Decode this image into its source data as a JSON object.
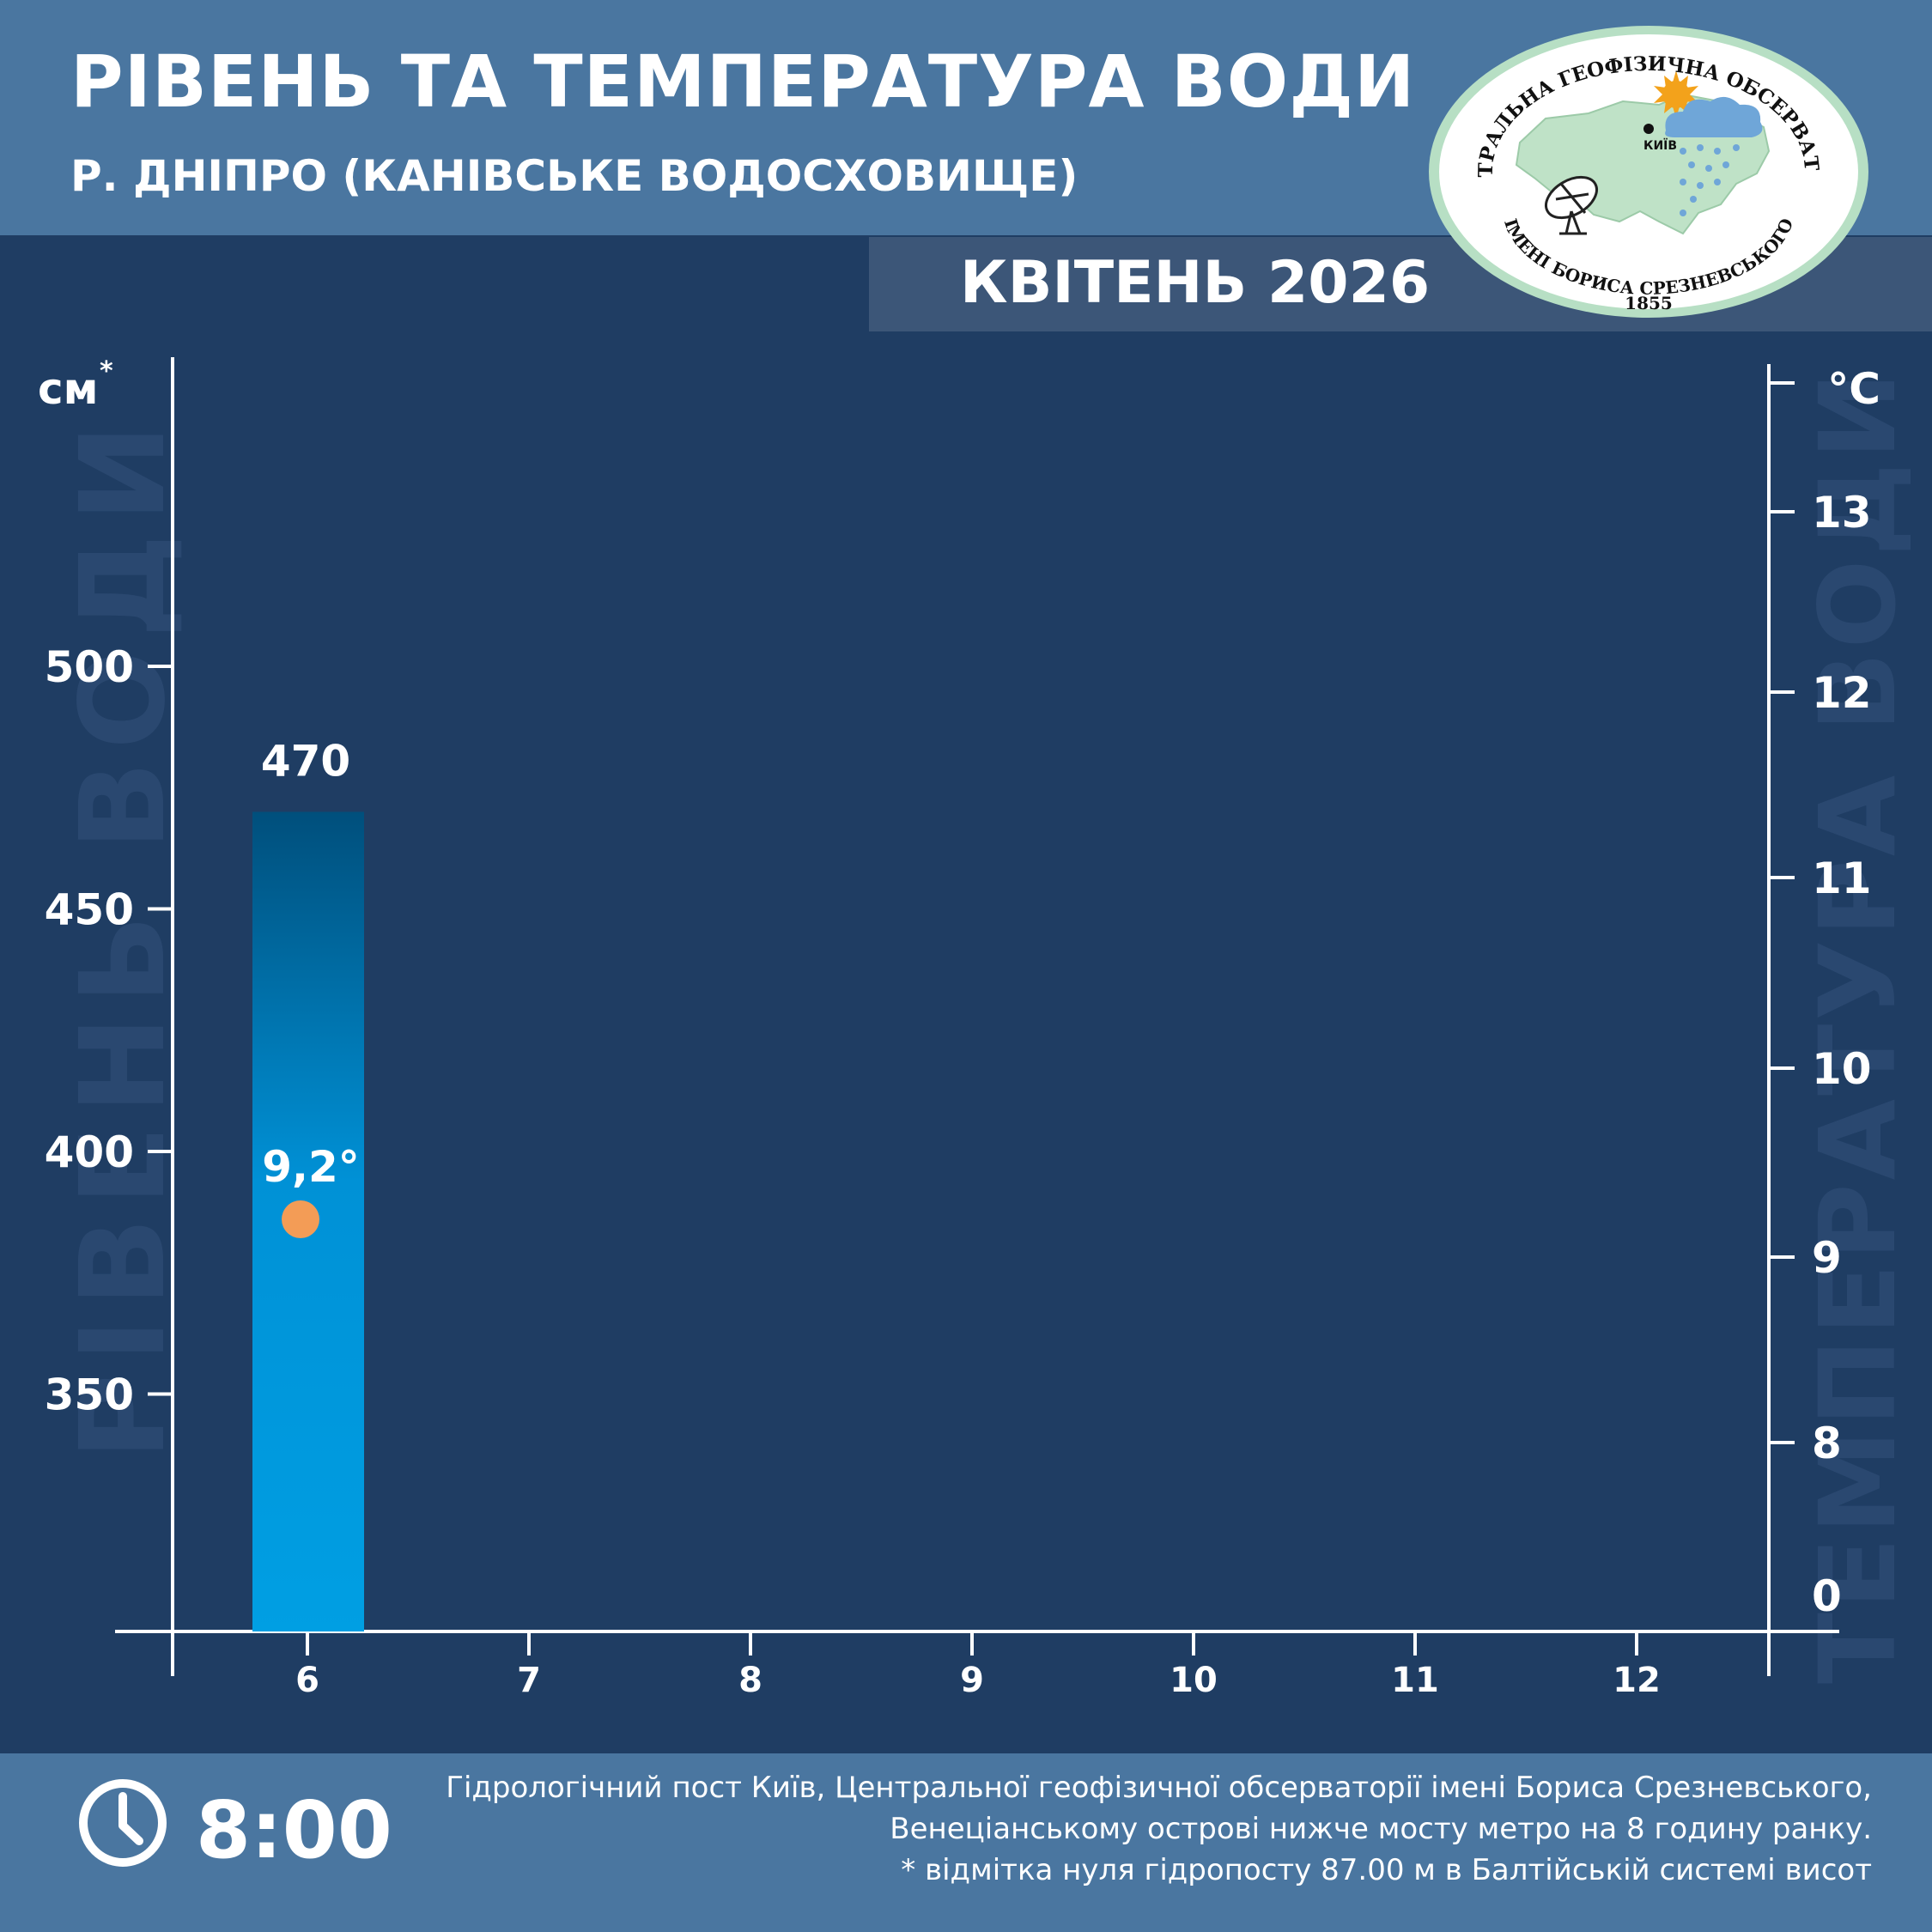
{
  "header": {
    "title": "РІВЕНЬ ТА ТЕМПЕРАТУРА ВОДИ",
    "subtitle": "Р. ДНІПРО (КАНІВСЬКЕ ВОДОСХОВИЩЕ)",
    "month": "КВІТЕНЬ 2026"
  },
  "logo": {
    "top_text": "ЦЕНТРАЛЬНА ГЕОФІЗИЧНА ОБСЕРВАТОРІЯ",
    "bottom_text": "ІМЕНІ БОРИСА СРЕЗНЕВСЬКОГО",
    "year": "1855",
    "city": "КИЇВ"
  },
  "chart_data": {
    "type": "bar",
    "x_ticks": [
      "6",
      "7",
      "8",
      "9",
      "10",
      "11",
      "12"
    ],
    "left_axis": {
      "unit": "см",
      "unit_mark": "*",
      "watermark": "РІВЕНЬ ВОДИ",
      "ticks": [
        350,
        400,
        450,
        500
      ],
      "range": [
        300,
        560
      ]
    },
    "right_axis": {
      "unit": "°C",
      "watermark": "ТЕМПЕРАТУРА ВОДИ",
      "ticks": [
        {
          "value": 0,
          "label": "0"
        },
        {
          "value": 8,
          "label": "8"
        },
        {
          "value": 9,
          "label": "9"
        },
        {
          "value": 10,
          "label": "10"
        },
        {
          "value": 11,
          "label": "11"
        },
        {
          "value": 12,
          "label": "12"
        },
        {
          "value": 13,
          "label": "13"
        }
      ]
    },
    "series": [
      {
        "day": "6",
        "level": 470,
        "level_label": "470",
        "temperature": 9.2,
        "temperature_label": "9,2°"
      }
    ],
    "colors": {
      "bar_top": "#004f7c",
      "bar_bottom": "#009fe3",
      "point": "#f39c56",
      "temp_label": "#3fbdf0"
    }
  },
  "footer": {
    "time": "8:00",
    "note_lines": [
      "Гідрологічний пост Київ, Центральної геофізичної обсерваторії імені Бориса Срезневського,",
      "Венеціанському острові нижче мосту метро  на 8 годину ранку.",
      "* відмітка нуля гідропосту 87.00 м в Балтійській системі висот"
    ]
  }
}
